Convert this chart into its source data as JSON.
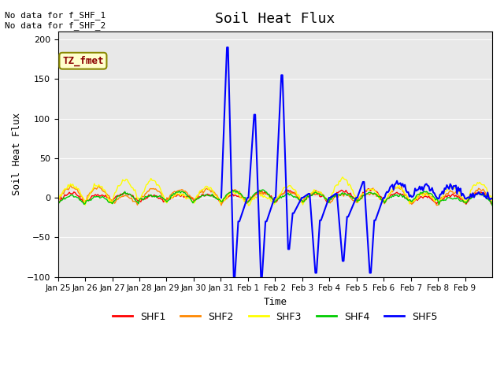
{
  "title": "Soil Heat Flux",
  "ylabel": "Soil Heat Flux",
  "xlabel": "Time",
  "ylim": [
    -100,
    210
  ],
  "yticks": [
    -100,
    -50,
    0,
    50,
    100,
    150,
    200
  ],
  "annotation_text": "No data for f_SHF_1\nNo data for f_SHF_2",
  "legend_label": "TZ_fmet",
  "series_colors": {
    "SHF1": "#ff0000",
    "SHF2": "#ff8800",
    "SHF3": "#ffff00",
    "SHF4": "#00cc00",
    "SHF5": "#0000ff"
  },
  "bg_color": "#e8e8e8",
  "legend_box_color": "#ffffcc",
  "legend_box_edge": "#888800",
  "x_tick_labels": [
    "Jan 25",
    "Jan 26",
    "Jan 27",
    "Jan 28",
    "Jan 29",
    "Jan 30",
    "Jan 31",
    "Feb 1",
    "Feb 2",
    "Feb 3",
    "Feb 4",
    "Feb 5",
    "Feb 6",
    "Feb 7",
    "Feb 8",
    "Feb 9"
  ],
  "n_days": 16
}
